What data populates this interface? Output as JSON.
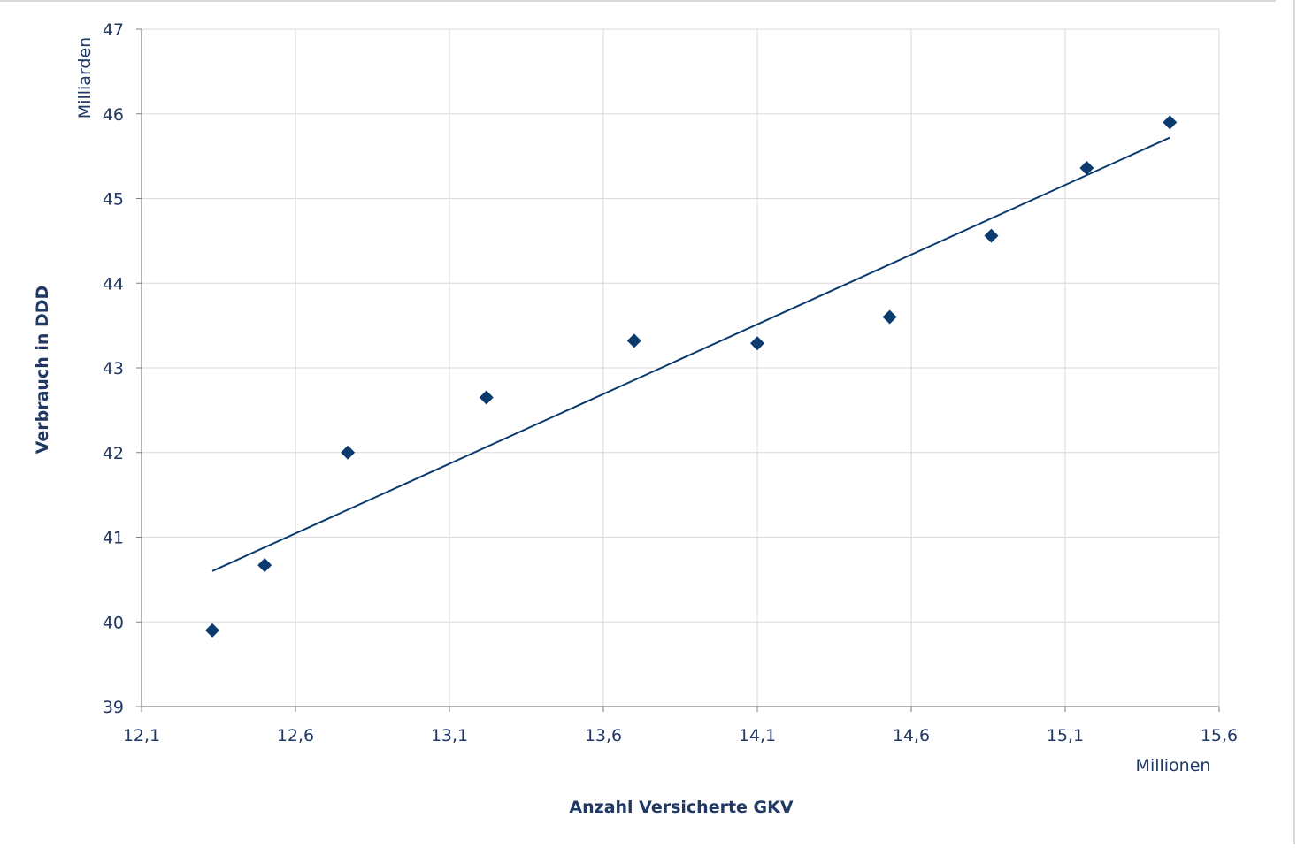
{
  "colors": {
    "text": "#1f3864",
    "marker": "#0b3a6e",
    "trendline": "#0b3a6e",
    "grid": "#d9d9d9",
    "axis": "#7f7f7f"
  },
  "chart_data": {
    "type": "scatter",
    "title": "",
    "xlabel": "Anzahl Versicherte GKV",
    "ylabel": "Verbrauch in DDD",
    "x_unit_label": "Millionen",
    "y_unit_label": "Milliarden",
    "xlim": [
      12.1,
      15.6
    ],
    "ylim": [
      39,
      47
    ],
    "x_ticks": [
      12.1,
      12.6,
      13.1,
      13.6,
      14.1,
      14.6,
      15.1,
      15.6
    ],
    "x_tick_labels": [
      "12,1",
      "12,6",
      "13,1",
      "13,6",
      "14,1",
      "14,6",
      "15,1",
      "15,6"
    ],
    "y_ticks": [
      39,
      40,
      41,
      42,
      43,
      44,
      45,
      46,
      47
    ],
    "y_tick_labels": [
      "39",
      "40",
      "41",
      "42",
      "43",
      "44",
      "45",
      "46",
      "47"
    ],
    "grid": true,
    "legend": "none",
    "marker": "diamond",
    "points": [
      {
        "x": 12.33,
        "y": 39.9
      },
      {
        "x": 12.5,
        "y": 40.67
      },
      {
        "x": 12.77,
        "y": 42.0
      },
      {
        "x": 13.22,
        "y": 42.65
      },
      {
        "x": 13.7,
        "y": 43.32
      },
      {
        "x": 14.1,
        "y": 43.29
      },
      {
        "x": 14.53,
        "y": 43.6
      },
      {
        "x": 14.86,
        "y": 44.56
      },
      {
        "x": 15.17,
        "y": 45.36
      },
      {
        "x": 15.44,
        "y": 45.9
      }
    ],
    "trendline": {
      "type": "linear",
      "x_start": 12.33,
      "y_start": 40.6,
      "x_end": 15.44,
      "y_end": 45.72
    }
  }
}
